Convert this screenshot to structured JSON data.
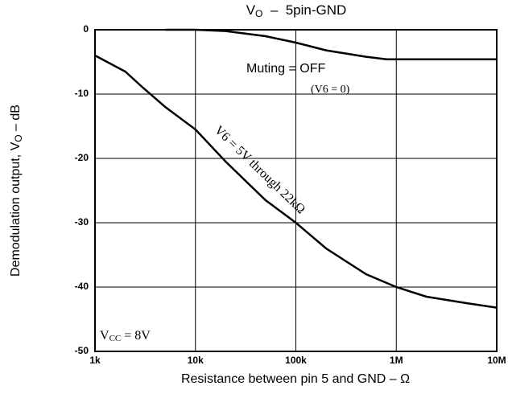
{
  "chart_data": {
    "type": "line",
    "title_parts": [
      "V",
      "O",
      "  –  5pin-GND"
    ],
    "ylabel_parts": [
      "Demodulation output, V",
      "O",
      " – dB"
    ],
    "xlabel": "Resistance between pin 5 and GND – Ω",
    "xscale": "log",
    "xlim": [
      1000,
      10000000
    ],
    "xticks": [
      {
        "value": 1000,
        "label": "1k"
      },
      {
        "value": 10000,
        "label": "10k"
      },
      {
        "value": 100000,
        "label": "100k"
      },
      {
        "value": 1000000,
        "label": "1M"
      },
      {
        "value": 10000000,
        "label": "10M"
      }
    ],
    "ylim": [
      -50,
      0
    ],
    "yticks": [
      0,
      -10,
      -20,
      -30,
      -40,
      -50
    ],
    "grid": true,
    "series": [
      {
        "color": "#000000",
        "x": [
          5000,
          10000,
          20000,
          50000,
          100000,
          200000,
          500000,
          800000,
          1000000,
          10000000
        ],
        "values": [
          0,
          0,
          -0.2,
          -1,
          -2,
          -3.2,
          -4.2,
          -4.6,
          -4.6,
          -4.6
        ]
      },
      {
        "color": "#000000",
        "x": [
          1000,
          2000,
          3000,
          5000,
          10000,
          20000,
          50000,
          100000,
          200000,
          500000,
          1000000,
          2000000,
          5000000,
          10000000
        ],
        "values": [
          -4,
          -6.5,
          -9,
          -12,
          -15.5,
          -20.5,
          -26.5,
          -30,
          -34,
          -38,
          -40,
          -41.5,
          -42.5,
          -43.2
        ]
      }
    ],
    "annotations": [
      "Muting = OFF",
      "(V6 = 0)",
      "V6 = 5V through 22kΩ"
    ],
    "vcc_parts": [
      "V",
      "CC",
      " = 8V"
    ]
  }
}
